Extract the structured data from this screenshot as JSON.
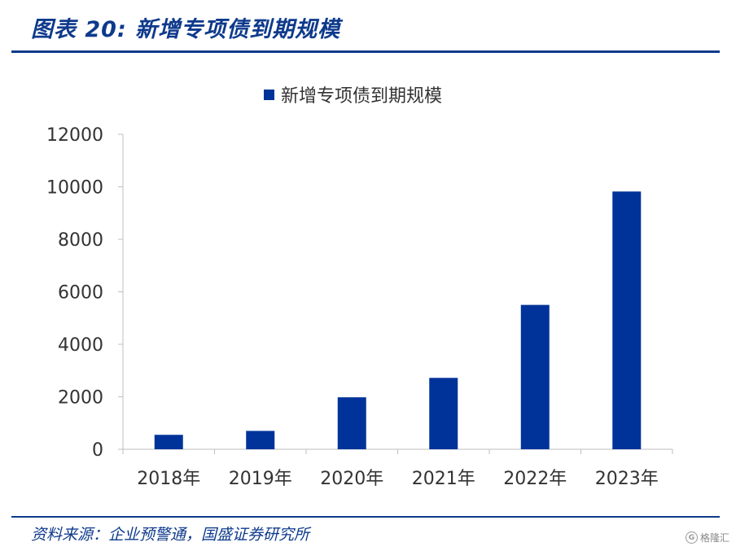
{
  "figure": {
    "title": "图表 20:  新增专项债到期规模",
    "source": "资料来源：企业预警通，国盛证券研究所",
    "watermark_logo": "G",
    "watermark": "格隆汇"
  },
  "colors": {
    "bar": "#003399",
    "header": "#0e3a8c",
    "axis": "#bfbfbf"
  },
  "chart_data": {
    "type": "bar",
    "categories": [
      "2018年",
      "2019年",
      "2020年",
      "2021年",
      "2022年",
      "2023年"
    ],
    "series": [
      {
        "name": "新增专项债到期规模",
        "values": [
          550,
          700,
          1980,
          2720,
          5500,
          9820
        ]
      }
    ],
    "xlabel": "",
    "ylabel": "",
    "ylim": [
      0,
      12000
    ],
    "yticks": [
      0,
      2000,
      4000,
      6000,
      8000,
      10000,
      12000
    ],
    "legend_position": "top-center",
    "grid": false
  }
}
